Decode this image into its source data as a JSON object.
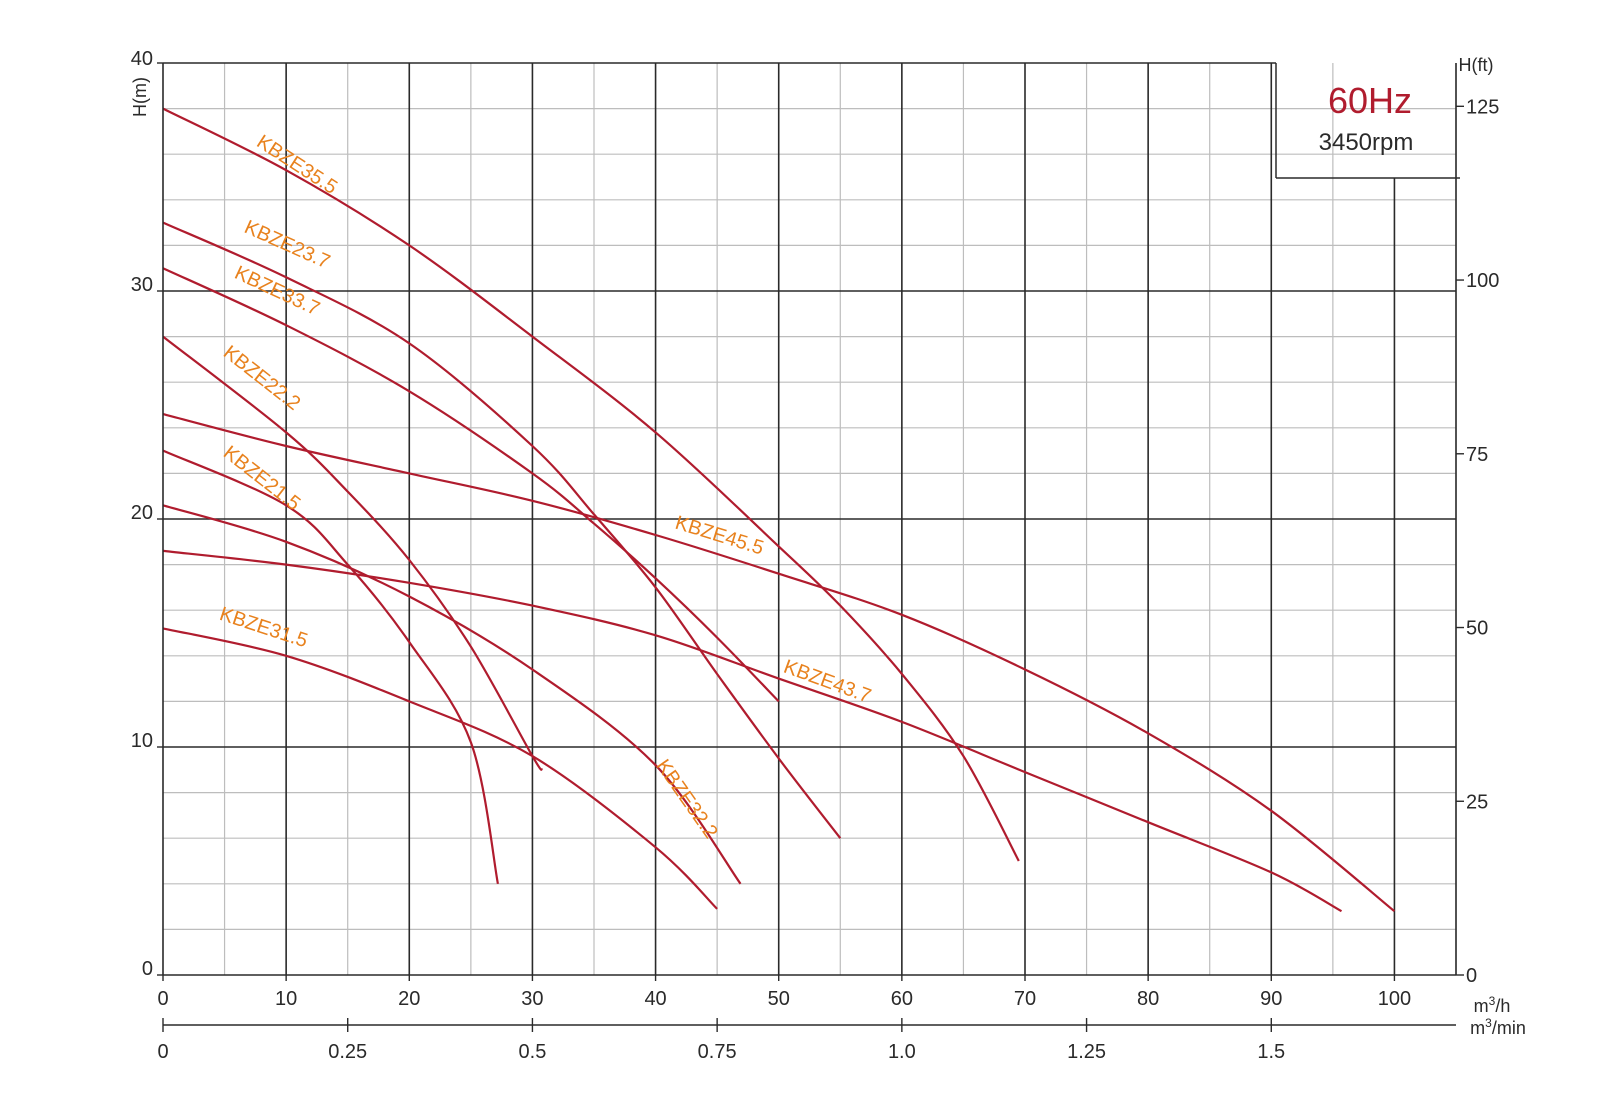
{
  "chart_data": {
    "type": "line",
    "title": "60Hz",
    "subtitle": "3450rpm",
    "xlabel": "m3/h",
    "xlabel_secondary": "m3/min",
    "ylabel": "H(m)",
    "ylabel_right": "H(ft)",
    "xlim": [
      0,
      105
    ],
    "ylim": [
      0,
      40
    ],
    "y_right_lim": [
      0,
      131.2
    ],
    "x_ticks": [
      "0",
      "10",
      "20",
      "30",
      "40",
      "50",
      "60",
      "70",
      "80",
      "90",
      "100"
    ],
    "x_ticks_secondary": [
      "0",
      "0.25",
      "0.5",
      "0.75",
      "1.0",
      "1.25",
      "1.5"
    ],
    "y_ticks": [
      "0",
      "10",
      "20",
      "30",
      "40"
    ],
    "y_ticks_right": [
      "0",
      "25",
      "50",
      "75",
      "100",
      "125"
    ],
    "grid": true,
    "colors": {
      "curve": "#b01c2e",
      "label": "#e8821e",
      "major_grid": "#2a2a2a",
      "minor_grid": "#bdbdbd"
    },
    "series": [
      {
        "name": "KBZE35.5",
        "points": [
          [
            0,
            38.0
          ],
          [
            10,
            35.3
          ],
          [
            20,
            32.0
          ],
          [
            30,
            28.0
          ],
          [
            40,
            23.8
          ],
          [
            50,
            18.8
          ],
          [
            55,
            16.2
          ],
          [
            60,
            13.2
          ],
          [
            65,
            9.6
          ],
          [
            69.5,
            5.0
          ]
        ]
      },
      {
        "name": "KBZE23.7",
        "points": [
          [
            0,
            33.0
          ],
          [
            10,
            30.6
          ],
          [
            20,
            27.7
          ],
          [
            30,
            23.2
          ],
          [
            35,
            20.2
          ],
          [
            40,
            17.0
          ],
          [
            45,
            13.2
          ],
          [
            50,
            9.5
          ],
          [
            55,
            6.0
          ]
        ]
      },
      {
        "name": "KBZE33.7",
        "points": [
          [
            0,
            31.0
          ],
          [
            10,
            28.5
          ],
          [
            20,
            25.6
          ],
          [
            30,
            22.0
          ],
          [
            35,
            19.8
          ],
          [
            40,
            17.4
          ],
          [
            45,
            14.8
          ],
          [
            50,
            12.0
          ]
        ]
      },
      {
        "name": "KBZE22.2",
        "points": [
          [
            0,
            28.0
          ],
          [
            10,
            23.8
          ],
          [
            15,
            21.2
          ],
          [
            20,
            18.2
          ],
          [
            25,
            14.4
          ],
          [
            30,
            9.6
          ],
          [
            30.8,
            9.0
          ]
        ]
      },
      {
        "name": "KBZE21.5",
        "points": [
          [
            0,
            23.0
          ],
          [
            10,
            20.6
          ],
          [
            15,
            18.0
          ],
          [
            20,
            14.6
          ],
          [
            25,
            10.2
          ],
          [
            27.2,
            4.0
          ]
        ]
      },
      {
        "name": "KBZE45.5",
        "points": [
          [
            0,
            24.6
          ],
          [
            10,
            23.2
          ],
          [
            20,
            22.0
          ],
          [
            30,
            20.8
          ],
          [
            40,
            19.3
          ],
          [
            50,
            17.6
          ],
          [
            60,
            15.8
          ],
          [
            70,
            13.4
          ],
          [
            80,
            10.6
          ],
          [
            90,
            7.2
          ],
          [
            100,
            2.8
          ]
        ]
      },
      {
        "name": "KBZE32.2",
        "points": [
          [
            0,
            20.6
          ],
          [
            10,
            19.0
          ],
          [
            20,
            16.6
          ],
          [
            30,
            13.4
          ],
          [
            40,
            9.2
          ],
          [
            46.9,
            4.0
          ]
        ]
      },
      {
        "name": "KBZE43.7",
        "points": [
          [
            0,
            18.6
          ],
          [
            10,
            18.0
          ],
          [
            20,
            17.2
          ],
          [
            30,
            16.2
          ],
          [
            40,
            14.9
          ],
          [
            50,
            13.0
          ],
          [
            60,
            11.1
          ],
          [
            70,
            8.9
          ],
          [
            80,
            6.7
          ],
          [
            90,
            4.5
          ],
          [
            95.7,
            2.8
          ]
        ]
      },
      {
        "name": "KBZE31.5",
        "points": [
          [
            0,
            15.2
          ],
          [
            10,
            14.0
          ],
          [
            20,
            12.0
          ],
          [
            30,
            9.6
          ],
          [
            40,
            5.6
          ],
          [
            45,
            2.9
          ]
        ]
      }
    ],
    "labels": [
      {
        "text": "KBZE35.5",
        "x": 7.5,
        "y": 36.4,
        "angle": 33
      },
      {
        "text": "KBZE23.7",
        "x": 6.5,
        "y": 32.6,
        "angle": 24
      },
      {
        "text": "KBZE33.7",
        "x": 5.7,
        "y": 30.6,
        "angle": 25
      },
      {
        "text": "KBZE22.2",
        "x": 4.8,
        "y": 27.2,
        "angle": 38
      },
      {
        "text": "KBZE21.5",
        "x": 4.8,
        "y": 22.8,
        "angle": 38
      },
      {
        "text": "KBZE45.5",
        "x": 41.5,
        "y": 19.6,
        "angle": 17
      },
      {
        "text": "KBZE32.2",
        "x": 40.0,
        "y": 9.2,
        "angle": 55
      },
      {
        "text": "KBZE43.7",
        "x": 50.3,
        "y": 13.3,
        "angle": 20
      },
      {
        "text": "KBZE31.5",
        "x": 4.5,
        "y": 15.6,
        "angle": 18
      }
    ]
  }
}
